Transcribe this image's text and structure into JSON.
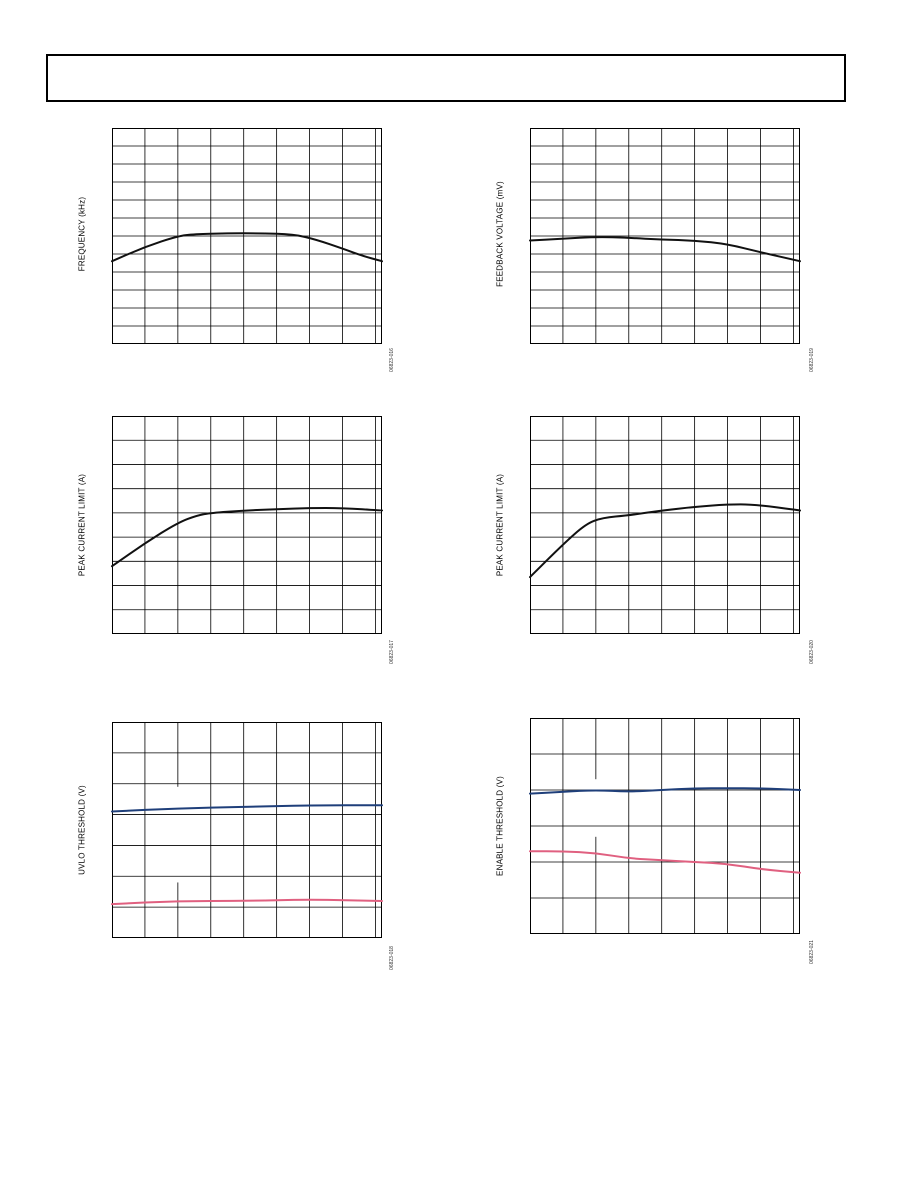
{
  "colors": {
    "frame": "#000000",
    "grid": "#000000",
    "black_series": "#111111",
    "blue_series": "#1f3f7a",
    "pink_series": "#e06080"
  },
  "chart_data": [
    {
      "id": "c1",
      "type": "line",
      "ylabel": "FREQUENCY (kHz)",
      "code": "06823-016",
      "grid": true,
      "xlim": [
        0,
        8.2
      ],
      "ylim": [
        0,
        12
      ],
      "vlines": [
        1,
        2,
        3,
        4,
        5,
        6,
        7,
        8
      ],
      "hlines": [
        1,
        2,
        3,
        4,
        5,
        6,
        7,
        8,
        9,
        10,
        11
      ],
      "series": [
        {
          "color": "black_series",
          "x": [
            0,
            1,
            2,
            2.5,
            3.5,
            4.5,
            5.5,
            6.2,
            7,
            7.6,
            8.2
          ],
          "y": [
            4.6,
            5.4,
            6.0,
            6.1,
            6.15,
            6.15,
            6.1,
            5.8,
            5.3,
            4.9,
            4.6
          ]
        }
      ]
    },
    {
      "id": "c2",
      "type": "line",
      "ylabel": "FEEDBACK VOLTAGE (mV)",
      "code": "06823-019",
      "grid": true,
      "xlim": [
        0,
        8.2
      ],
      "ylim": [
        0,
        12
      ],
      "vlines": [
        1,
        2,
        3,
        4,
        5,
        6,
        7,
        8
      ],
      "hlines": [
        1,
        2,
        3,
        4,
        5,
        6,
        7,
        8,
        9,
        10,
        11
      ],
      "series": [
        {
          "color": "black_series",
          "x": [
            0,
            1,
            2,
            3,
            4,
            5,
            6,
            7,
            8.2
          ],
          "y": [
            5.75,
            5.85,
            5.95,
            5.9,
            5.8,
            5.75,
            5.55,
            5.1,
            4.6
          ]
        }
      ]
    },
    {
      "id": "c3",
      "type": "line",
      "ylabel": "PEAK CURRENT LIMIT (A)",
      "code": "06823-017",
      "grid": true,
      "xlim": [
        0,
        8.2
      ],
      "ylim": [
        0,
        9
      ],
      "vlines": [
        1,
        2,
        3,
        4,
        5,
        6,
        7,
        8
      ],
      "hlines": [
        1,
        2,
        3,
        4,
        5,
        6,
        7,
        8
      ],
      "series": [
        {
          "color": "black_series",
          "x": [
            0,
            1,
            2,
            2.6,
            3,
            4,
            5,
            6,
            7,
            8.2
          ],
          "y": [
            2.8,
            3.75,
            4.6,
            4.9,
            5.0,
            5.1,
            5.15,
            5.2,
            5.2,
            5.1
          ]
        }
      ]
    },
    {
      "id": "c4",
      "type": "line",
      "ylabel": "PEAK CURRENT LIMIT (A)",
      "code": "06823-020",
      "grid": true,
      "xlim": [
        0,
        8.2
      ],
      "ylim": [
        0,
        9
      ],
      "vlines": [
        1,
        2,
        3,
        4,
        5,
        6,
        7,
        8
      ],
      "hlines": [
        1,
        2,
        3,
        4,
        5,
        6,
        7,
        8
      ],
      "series": [
        {
          "color": "black_series",
          "x": [
            0,
            1,
            1.7,
            2.2,
            3,
            4,
            5,
            6,
            6.8,
            8.2
          ],
          "y": [
            2.35,
            3.7,
            4.55,
            4.8,
            4.9,
            5.1,
            5.25,
            5.35,
            5.35,
            5.1
          ]
        }
      ]
    },
    {
      "id": "c5",
      "type": "line",
      "ylabel": "UVLO THRESHOLD (V)",
      "code": "06823-018",
      "grid": true,
      "xlim": [
        0,
        8.2
      ],
      "ylim": [
        0,
        7
      ],
      "vlines": [
        1,
        3,
        4,
        5,
        6,
        7,
        8
      ],
      "hlines": [
        1,
        2,
        3,
        4,
        5,
        6
      ],
      "stubs": [
        {
          "x": 2,
          "y_from": 0,
          "y_to": 1.8
        },
        {
          "x": 2,
          "y_from": 4.9,
          "y_to": 7
        }
      ],
      "series": [
        {
          "color": "blue_series",
          "x": [
            0,
            2,
            4,
            6,
            8.2
          ],
          "y": [
            4.1,
            4.2,
            4.25,
            4.3,
            4.3
          ]
        },
        {
          "color": "pink_series",
          "x": [
            0,
            2,
            4,
            6,
            8.2
          ],
          "y": [
            1.1,
            1.2,
            1.2,
            1.25,
            1.2
          ]
        }
      ]
    },
    {
      "id": "c6",
      "type": "line",
      "ylabel": "ENABLE THRESHOLD (V)",
      "code": "06823-021",
      "grid": true,
      "xlim": [
        0,
        8.2
      ],
      "ylim": [
        0,
        6
      ],
      "vlines": [
        1,
        3,
        4,
        5,
        6,
        7,
        8
      ],
      "hlines": [
        1,
        2,
        3,
        4,
        5
      ],
      "stubs": [
        {
          "x": 2,
          "y_from": 0,
          "y_to": 2.7
        },
        {
          "x": 2,
          "y_from": 4.3,
          "y_to": 6
        }
      ],
      "series": [
        {
          "color": "blue_series",
          "x": [
            0,
            1,
            2,
            3,
            4,
            5,
            6,
            7,
            8.2
          ],
          "y": [
            3.9,
            3.95,
            4.0,
            3.95,
            4.0,
            4.05,
            4.05,
            4.05,
            4.0
          ]
        },
        {
          "color": "pink_series",
          "x": [
            0,
            1,
            2,
            3,
            4,
            5,
            6,
            7,
            8.2
          ],
          "y": [
            2.3,
            2.3,
            2.25,
            2.1,
            2.05,
            2.0,
            1.95,
            1.8,
            1.7
          ]
        }
      ]
    }
  ]
}
